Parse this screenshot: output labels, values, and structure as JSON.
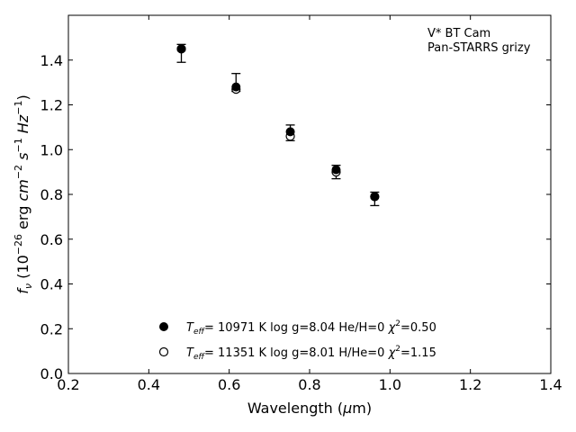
{
  "chart_data": {
    "type": "scatter",
    "xlabel": "Wavelength (μm)",
    "ylabel": "f_ν (10^-26 erg cm^-2 s^-1 Hz^-1)",
    "xlim": [
      0.2,
      1.4
    ],
    "ylim": [
      0.0,
      1.6
    ],
    "x_ticks": [
      "0.2",
      "0.4",
      "0.6",
      "0.8",
      "1.0",
      "1.2",
      "1.4"
    ],
    "y_ticks": [
      "0.0",
      "0.2",
      "0.4",
      "0.6",
      "0.8",
      "1.0",
      "1.2",
      "1.4"
    ],
    "annotation": [
      "V* BT Cam",
      "Pan-STARRS grizy"
    ],
    "legend_position": "lower-center",
    "grid": false,
    "observed": {
      "x": [
        0.481,
        0.617,
        0.752,
        0.866,
        0.962
      ],
      "y": [
        1.43,
        1.3,
        1.08,
        0.9,
        0.78
      ],
      "yerr_low": [
        1.39,
        1.26,
        1.04,
        0.87,
        0.75
      ],
      "yerr_high": [
        1.47,
        1.34,
        1.11,
        0.93,
        0.81
      ]
    },
    "series": [
      {
        "name": "T_eff= 10971 K  log g=8.04  He/H=0  χ²=0.50",
        "marker": "filled",
        "x": [
          0.481,
          0.617,
          0.752,
          0.866,
          0.962
        ],
        "y": [
          1.45,
          1.28,
          1.08,
          0.91,
          0.79
        ]
      },
      {
        "name": "T_eff= 11351 K  log g=8.01  H/He=0  χ²=1.15",
        "marker": "open",
        "x": [
          0.481,
          0.617,
          0.752,
          0.866,
          0.962
        ],
        "y": [
          1.45,
          1.27,
          1.06,
          0.9,
          0.79
        ]
      }
    ],
    "legend": [
      {
        "teff": "= 10971 K  log g=8.04  He/H=0  ",
        "chi": "=0.50"
      },
      {
        "teff": "= 11351 K  log g=8.01  H/He=0  ",
        "chi": "=1.15"
      }
    ]
  }
}
